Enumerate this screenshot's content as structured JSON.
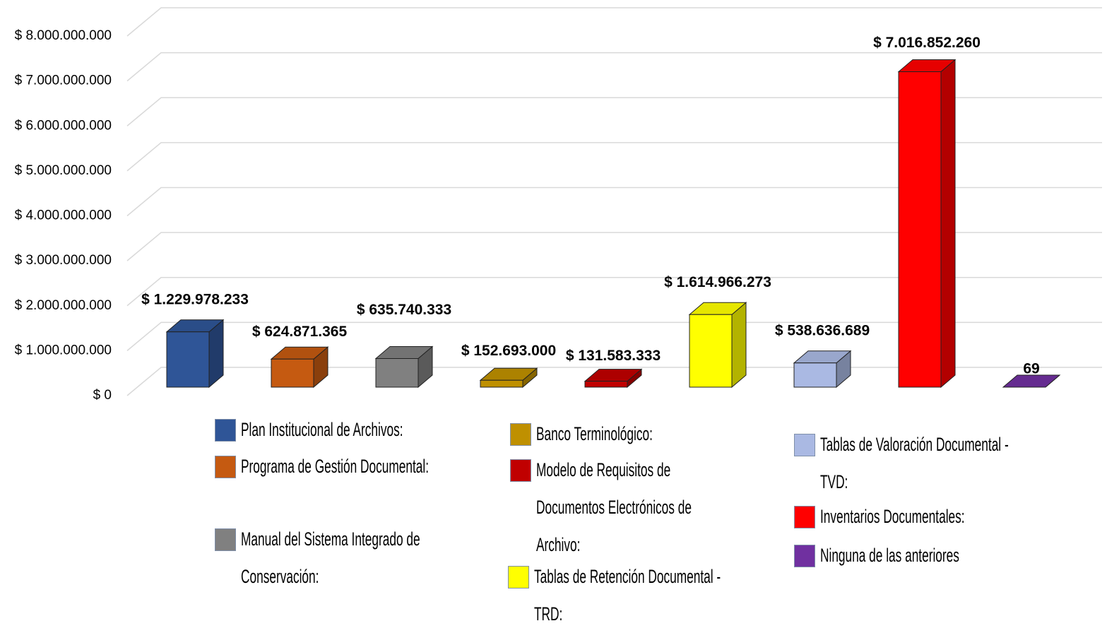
{
  "chart_data": {
    "type": "bar3d",
    "categories": [
      "Plan Institucional de Archivos:",
      "Programa de Gestión Documental:",
      "Manual del Sistema Integrado de Conservación:",
      "Banco Terminológico:",
      "Modelo de Requisitos de Documentos Electrónicos de Archivo:",
      "Tablas de Retención Documental - TRD:",
      "Tablas de Valoración Documental - TVD:",
      "Inventarios Documentales:",
      "Ninguna de las anteriores"
    ],
    "values": [
      1229978233,
      624871365,
      635740333,
      152693000,
      131583333,
      1614966273,
      538636689,
      7016852260,
      69
    ],
    "value_labels": [
      "$ 1.229.978.233",
      "$ 624.871.365",
      "$ 635.740.333",
      "$ 152.693.000",
      "$ 131.583.333",
      "$ 1.614.966.273",
      "$ 538.636.689",
      "$ 7.016.852.260",
      "69"
    ],
    "colors": [
      "#2f5597",
      "#c55a11",
      "#808080",
      "#bf9000",
      "#c00000",
      "#ffff00",
      "#aab9e3",
      "#ff0000",
      "#7030a0"
    ],
    "ylim": [
      0,
      8000000000
    ],
    "yticks": [
      {
        "value": 0,
        "label": "$ 0"
      },
      {
        "value": 1000000000,
        "label": "$ 1.000.000.000"
      },
      {
        "value": 2000000000,
        "label": "$ 2.000.000.000"
      },
      {
        "value": 3000000000,
        "label": "$ 3.000.000.000"
      },
      {
        "value": 4000000000,
        "label": "$ 4.000.000.000"
      },
      {
        "value": 5000000000,
        "label": "$ 5.000.000.000"
      },
      {
        "value": 6000000000,
        "label": "$ 6.000.000.000"
      },
      {
        "value": 7000000000,
        "label": "$ 7.000.000.000"
      },
      {
        "value": 8000000000,
        "label": "$ 8.000.000.000"
      }
    ],
    "grid": true
  }
}
